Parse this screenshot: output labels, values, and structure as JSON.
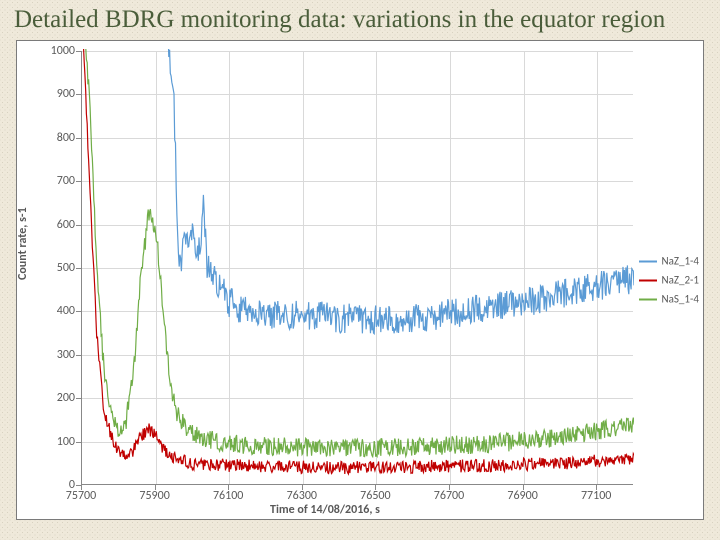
{
  "slide": {
    "title": "Detailed BDRG monitoring data: variations in the equator region",
    "title_color": "#4a5d3a",
    "title_fontsize": 25,
    "background_color": "#efe9da"
  },
  "chart": {
    "type": "line",
    "plot_background": "#ffffff",
    "grid_color": "#d9d9d9",
    "axis_color": "#888888",
    "y_axis": {
      "title": "Count rate, s-1",
      "min": 0,
      "max": 1000,
      "tick_step": 100,
      "label_fontsize": 12,
      "title_fontsize": 12,
      "label_color": "#595959"
    },
    "x_axis": {
      "title": "Time of 14/08/2016, s",
      "min": 75700,
      "max": 77200,
      "tick_step": 200,
      "label_fontsize": 12,
      "title_fontsize": 12,
      "label_color": "#595959"
    },
    "legend": {
      "position": "right",
      "fontsize": 11,
      "items": [
        {
          "label": "NaZ_1-4",
          "color": "#5b9bd5"
        },
        {
          "label": "NaZ_2-1",
          "color": "#c00000"
        },
        {
          "label": "NaS_1-4",
          "color": "#70ad47"
        }
      ]
    },
    "series": [
      {
        "name": "NaZ_1-4",
        "color": "#5b9bd5",
        "line_width": 1.2,
        "noise_amplitude": 35,
        "baseline_points": [
          [
            75700,
            1100
          ],
          [
            75750,
            1100
          ],
          [
            75800,
            1100
          ],
          [
            75850,
            1100
          ],
          [
            75900,
            1100
          ],
          [
            75930,
            1050
          ],
          [
            75950,
            900
          ],
          [
            75960,
            550
          ],
          [
            75970,
            520
          ],
          [
            75980,
            580
          ],
          [
            75990,
            530
          ],
          [
            76000,
            570
          ],
          [
            76010,
            510
          ],
          [
            76020,
            550
          ],
          [
            76030,
            640
          ],
          [
            76040,
            500
          ],
          [
            76060,
            480
          ],
          [
            76100,
            420
          ],
          [
            76150,
            400
          ],
          [
            76200,
            395
          ],
          [
            76300,
            390
          ],
          [
            76400,
            385
          ],
          [
            76500,
            380
          ],
          [
            76600,
            385
          ],
          [
            76700,
            395
          ],
          [
            76800,
            405
          ],
          [
            76900,
            420
          ],
          [
            77000,
            440
          ],
          [
            77100,
            460
          ],
          [
            77200,
            475
          ]
        ]
      },
      {
        "name": "NaZ_2-1",
        "color": "#c00000",
        "line_width": 1.2,
        "noise_amplitude": 15,
        "baseline_points": [
          [
            75700,
            1100
          ],
          [
            75720,
            700
          ],
          [
            75740,
            350
          ],
          [
            75760,
            170
          ],
          [
            75780,
            110
          ],
          [
            75800,
            80
          ],
          [
            75820,
            70
          ],
          [
            75840,
            80
          ],
          [
            75860,
            110
          ],
          [
            75880,
            130
          ],
          [
            75900,
            115
          ],
          [
            75920,
            85
          ],
          [
            75940,
            70
          ],
          [
            75960,
            58
          ],
          [
            76000,
            50
          ],
          [
            76100,
            45
          ],
          [
            76200,
            43
          ],
          [
            76400,
            40
          ],
          [
            76600,
            42
          ],
          [
            76800,
            45
          ],
          [
            77000,
            50
          ],
          [
            77100,
            55
          ],
          [
            77200,
            60
          ]
        ]
      },
      {
        "name": "NaS_1-4",
        "color": "#70ad47",
        "line_width": 1.2,
        "noise_amplitude": 22,
        "baseline_points": [
          [
            75700,
            1100
          ],
          [
            75720,
            900
          ],
          [
            75740,
            500
          ],
          [
            75760,
            260
          ],
          [
            75780,
            160
          ],
          [
            75800,
            130
          ],
          [
            75820,
            150
          ],
          [
            75840,
            260
          ],
          [
            75860,
            480
          ],
          [
            75880,
            620
          ],
          [
            75900,
            600
          ],
          [
            75920,
            400
          ],
          [
            75940,
            230
          ],
          [
            75960,
            160
          ],
          [
            75980,
            135
          ],
          [
            76000,
            120
          ],
          [
            76050,
            105
          ],
          [
            76100,
            95
          ],
          [
            76200,
            90
          ],
          [
            76400,
            85
          ],
          [
            76600,
            88
          ],
          [
            76800,
            95
          ],
          [
            77000,
            110
          ],
          [
            77100,
            125
          ],
          [
            77200,
            135
          ]
        ]
      }
    ]
  }
}
